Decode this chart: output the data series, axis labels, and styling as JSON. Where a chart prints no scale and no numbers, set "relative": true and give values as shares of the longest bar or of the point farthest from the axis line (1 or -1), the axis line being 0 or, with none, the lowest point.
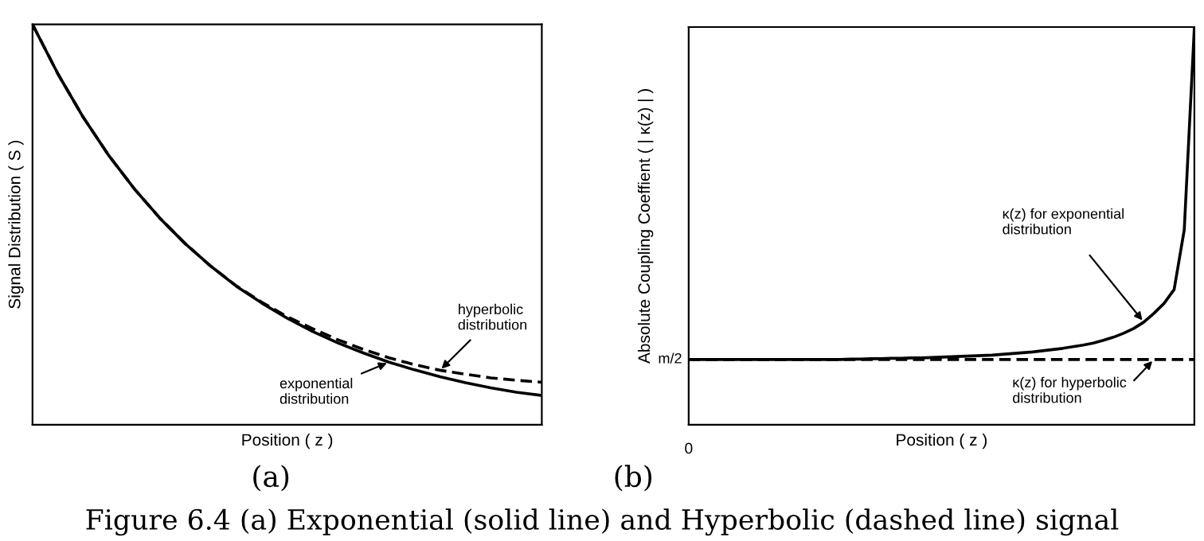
{
  "chart_data": [
    {
      "type": "line",
      "relative": true,
      "xlabel": "Position ( z )",
      "ylabel": "Signal Distribution ( S )",
      "tick_labels": false,
      "legend": false,
      "marker": "none",
      "categories": [
        null,
        null,
        null,
        null,
        null,
        null,
        null,
        null,
        null,
        null,
        null,
        null,
        null,
        null,
        null,
        null,
        null,
        null,
        null,
        null,
        null
      ],
      "series": [
        {
          "color": "#000000",
          "line_style": "solid",
          "values": [
            1,
            0.876,
            0.767,
            0.672,
            0.589,
            0.516,
            0.452,
            0.396,
            0.346,
            0.304,
            0.266,
            0.233,
            0.204,
            0.179,
            0.156,
            0.137,
            0.12,
            0.105,
            0.092,
            0.081,
            0.073
          ]
        },
        {
          "color": "#000000",
          "line_style": "dashed",
          "values": [
            1,
            0.876,
            0.767,
            0.672,
            0.589,
            0.516,
            0.452,
            0.396,
            0.347,
            0.306,
            0.27,
            0.24,
            0.212,
            0.188,
            0.167,
            0.15,
            0.136,
            0.126,
            0.117,
            0.111,
            0.106
          ]
        }
      ],
      "annotations": [
        "hyperbolic\ndistribution",
        "exponential\ndistribution",
        "(a)",
        "Figure 6.4 (a) Exponential (solid line) and Hyperbolic (dashed line) signal"
      ]
    },
    {
      "type": "line",
      "relative": true,
      "xlabel": "Position ( z )",
      "ylabel": "Absolute Coupling Coeffient ( | κ(z) | )",
      "tick_labels": false,
      "legend": false,
      "marker": "none",
      "categories": [
        null,
        null,
        null,
        null,
        null,
        null,
        null,
        null,
        null,
        null,
        null,
        null,
        null,
        null,
        null,
        null,
        null,
        null,
        null,
        null,
        null,
        null,
        null,
        null,
        null,
        null,
        null,
        null,
        null,
        null,
        null,
        null,
        null,
        null,
        null,
        null,
        null,
        null,
        null,
        null,
        null,
        null,
        null,
        null,
        null,
        null,
        null,
        null,
        null,
        null,
        null
      ],
      "series": [
        {
          "color": "#000000",
          "line_style": "solid",
          "values": [
            0.164,
            0.164,
            0.164,
            0.164,
            0.164,
            0.164,
            0.164,
            0.164,
            0.164,
            0.164,
            0.164,
            0.164,
            0.164,
            0.164,
            0.164,
            0.164,
            0.165,
            0.165,
            0.166,
            0.166,
            0.167,
            0.167,
            0.168,
            0.168,
            0.169,
            0.17,
            0.171,
            0.172,
            0.173,
            0.174,
            0.175,
            0.177,
            0.179,
            0.181,
            0.183,
            0.186,
            0.189,
            0.192,
            0.196,
            0.2,
            0.205,
            0.212,
            0.22,
            0.23,
            0.242,
            0.258,
            0.28,
            0.305,
            0.34,
            0.49,
            1.0
          ]
        },
        {
          "color": "#000000",
          "line_style": "dashed",
          "values": [
            0.164,
            0.164,
            0.164,
            0.164,
            0.164,
            0.164,
            0.164,
            0.164,
            0.164,
            0.164,
            0.164,
            0.164,
            0.164,
            0.164,
            0.164,
            0.164,
            0.164,
            0.164,
            0.164,
            0.164,
            0.164,
            0.164,
            0.164,
            0.164,
            0.164,
            0.164,
            0.164,
            0.164,
            0.164,
            0.164,
            0.164,
            0.164,
            0.164,
            0.164,
            0.164,
            0.164,
            0.164,
            0.164,
            0.164,
            0.164,
            0.164,
            0.164,
            0.164,
            0.164,
            0.164,
            0.164,
            0.164,
            0.164,
            0.164,
            0.164,
            0.164
          ]
        }
      ],
      "annotations": [
        "m/2",
        "0",
        "κ(z) for exponential\ndistribution",
        "κ(z) for hyperbolic\ndistribution",
        "(b)"
      ]
    }
  ]
}
